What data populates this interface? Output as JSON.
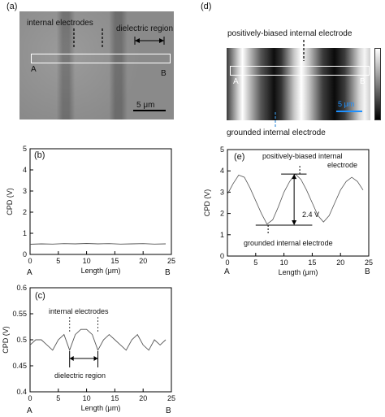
{
  "figure": {
    "panel_a": {
      "label": "(a)",
      "annotation_electrodes": "internal electrodes",
      "annotation_dielectric": "dielectric region",
      "point_a": "A",
      "point_b": "B",
      "scale_bar": "5 μm"
    },
    "panel_d": {
      "label": "(d)",
      "annotation_positive": "positively-biased internal electrode",
      "annotation_grounded": "grounded internal electrode",
      "point_a": "A",
      "point_b": "B",
      "scale_bar": "5 μm",
      "scale_bar_color": "#1e90ff"
    },
    "panel_c_annotations": {
      "electrodes": "internal electrodes",
      "dielectric": "dielectric region"
    },
    "panel_e_annotations": {
      "positive_line1": "positively-biased internal",
      "positive_line2": "electrode",
      "grounded": "grounded internal electrode",
      "delta": "2.4 V"
    },
    "end_a": "A",
    "end_b": "B"
  },
  "chart_data": [
    {
      "id": "b",
      "label": "(b)",
      "type": "line",
      "xlabel": "Length (μm)",
      "ylabel": "CPD (V)",
      "xlim": [
        0,
        25
      ],
      "ylim": [
        0,
        5
      ],
      "xticks": [
        0,
        5,
        10,
        15,
        20,
        25
      ],
      "yticks": [
        0,
        1,
        2,
        3,
        4,
        5
      ],
      "x": [
        0,
        2,
        4,
        6,
        8,
        10,
        12,
        14,
        16,
        18,
        20,
        22,
        24
      ],
      "y": [
        0.48,
        0.5,
        0.49,
        0.51,
        0.5,
        0.52,
        0.5,
        0.51,
        0.49,
        0.5,
        0.51,
        0.49,
        0.5
      ]
    },
    {
      "id": "c",
      "label": "(c)",
      "type": "line",
      "xlabel": "Length (μm)",
      "ylabel": "CPD (V)",
      "xlim": [
        0,
        25
      ],
      "ylim": [
        0.4,
        0.6
      ],
      "xticks": [
        0,
        5,
        10,
        15,
        20,
        25
      ],
      "yticks": [
        0.4,
        0.45,
        0.5,
        0.55,
        0.6
      ],
      "x": [
        0,
        1,
        2,
        3,
        4,
        5,
        6,
        7,
        8,
        9,
        10,
        11,
        12,
        13,
        14,
        15,
        16,
        17,
        18,
        19,
        20,
        21,
        22,
        23,
        24
      ],
      "y": [
        0.49,
        0.5,
        0.5,
        0.49,
        0.48,
        0.5,
        0.51,
        0.48,
        0.51,
        0.52,
        0.52,
        0.51,
        0.48,
        0.5,
        0.51,
        0.5,
        0.49,
        0.48,
        0.5,
        0.51,
        0.49,
        0.48,
        0.5,
        0.49,
        0.5
      ]
    },
    {
      "id": "e",
      "label": "(e)",
      "type": "line",
      "xlabel": "Length (μm)",
      "ylabel": "CPD (V)",
      "xlim": [
        0,
        25
      ],
      "ylim": [
        0,
        5
      ],
      "xticks": [
        0,
        5,
        10,
        15,
        20,
        25
      ],
      "yticks": [
        0,
        1,
        2,
        3,
        4,
        5
      ],
      "x": [
        0,
        1,
        2,
        3,
        4,
        5,
        6,
        7,
        8,
        9,
        10,
        11,
        12,
        13,
        14,
        15,
        16,
        17,
        18,
        19,
        20,
        21,
        22,
        23,
        24
      ],
      "y": [
        2.9,
        3.4,
        3.8,
        3.7,
        3.2,
        2.6,
        2.0,
        1.5,
        1.7,
        2.3,
        3.0,
        3.5,
        3.85,
        3.6,
        3.1,
        2.5,
        1.9,
        1.6,
        1.9,
        2.5,
        3.1,
        3.5,
        3.7,
        3.5,
        3.1
      ]
    }
  ]
}
